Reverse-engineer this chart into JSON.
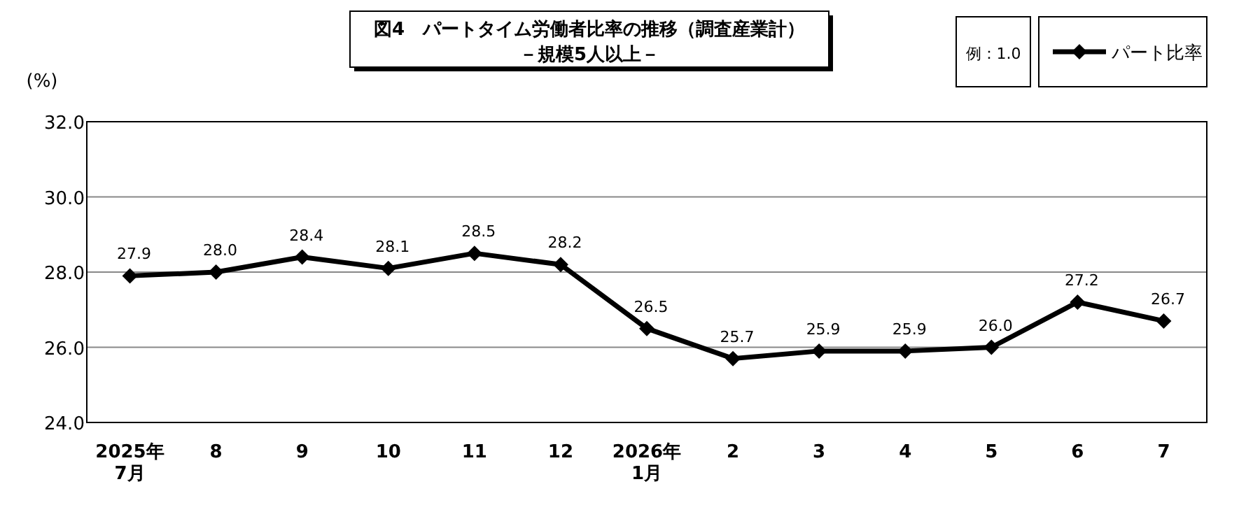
{
  "chart_data": {
    "type": "line",
    "title": "図4　パートタイム労働者比率の推移（調査産業計）",
    "subtitle": "－規模5人以上－",
    "ylabel": "(%)",
    "annotations": [
      "例：1.0"
    ],
    "categories": [
      "2025年\n7月",
      "8",
      "9",
      "10",
      "11",
      "12",
      "2026年\n1月",
      "2",
      "3",
      "4",
      "5",
      "6",
      "7"
    ],
    "series": [
      {
        "name": "パート比率",
        "color": "#000000",
        "values": [
          27.9,
          28.0,
          28.4,
          28.1,
          28.5,
          28.2,
          26.5,
          25.7,
          25.9,
          25.9,
          26.0,
          27.2,
          26.7
        ],
        "value_labels": [
          "27.9",
          "28.0",
          "28.4",
          "28.1",
          "28.5",
          "28.2",
          "26.5",
          "25.7",
          "25.9",
          "25.9",
          "26.0",
          "27.2",
          "26.7"
        ]
      }
    ],
    "ylim": [
      24,
      32
    ],
    "yticks": [
      {
        "value": 24,
        "label": "24.0"
      },
      {
        "value": 26,
        "label": "26.0"
      },
      {
        "value": 28,
        "label": "28.0"
      },
      {
        "value": 30,
        "label": "30.0"
      },
      {
        "value": 32,
        "label": "32.0"
      }
    ],
    "grid": "y",
    "legend": "top right",
    "marker": "diamond",
    "line_style": "solid"
  }
}
